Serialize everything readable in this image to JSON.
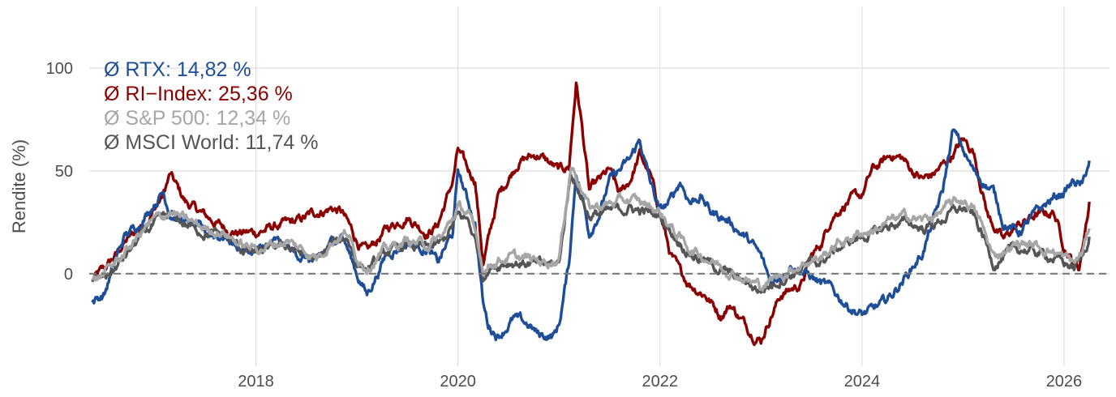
{
  "chart_data": {
    "type": "line",
    "title": "",
    "xlabel": "",
    "ylabel": "Rendite (%)",
    "xlim": [
      2016.35,
      2026.45
    ],
    "ylim": [
      -45,
      130
    ],
    "x_ticks": [
      2018,
      2020,
      2022,
      2024,
      2026
    ],
    "x_tick_labels": [
      "2018",
      "2020",
      "2022",
      "2024",
      "2026"
    ],
    "y_ticks": [
      0,
      50,
      100
    ],
    "y_tick_labels": [
      "0",
      "50",
      "100"
    ],
    "grid": true,
    "reference_line": 0,
    "legend": {
      "placement": "top-left",
      "entries": [
        {
          "label": "Ø RTX: 14,82 %",
          "color": "#1f4e99"
        },
        {
          "label": "Ø RI−Index: 25,36 %",
          "color": "#8b0000"
        },
        {
          "label": "Ø S&P 500: 12,34 %",
          "color": "#a6a6a6"
        },
        {
          "label": "Ø MSCI World: 11,74 %",
          "color": "#555555"
        }
      ]
    },
    "series": [
      {
        "color": "#8b0000",
        "x": [
          2016.38,
          2016.5,
          2016.6,
          2016.7,
          2016.8,
          2016.9,
          2017.0,
          2017.08,
          2017.15,
          2017.3,
          2017.5,
          2017.7,
          2017.85,
          2018.0,
          2018.2,
          2018.4,
          2018.6,
          2018.75,
          2018.85,
          2019.0,
          2019.1,
          2019.3,
          2019.5,
          2019.7,
          2019.8,
          2019.95,
          2020.0,
          2020.1,
          2020.17,
          2020.25,
          2020.4,
          2020.6,
          2020.8,
          2021.0,
          2021.1,
          2021.17,
          2021.22,
          2021.3,
          2021.4,
          2021.5,
          2021.6,
          2021.7,
          2021.8,
          2021.9,
          2022.0,
          2022.1,
          2022.2,
          2022.3,
          2022.45,
          2022.6,
          2022.7,
          2022.8,
          2022.9,
          2023.0,
          2023.1,
          2023.2,
          2023.4,
          2023.5,
          2023.6,
          2023.7,
          2023.85,
          2024.0,
          2024.1,
          2024.2,
          2024.3,
          2024.4,
          2024.5,
          2024.6,
          2024.7,
          2024.85,
          2025.0,
          2025.1,
          2025.25,
          2025.4,
          2025.5,
          2025.7,
          2025.9,
          2026.0,
          2026.1,
          2026.15,
          2026.25
        ],
        "y": [
          -3,
          2,
          8,
          15,
          20,
          25,
          32,
          38,
          48,
          35,
          28,
          22,
          20,
          20,
          23,
          25,
          30,
          32,
          30,
          16,
          10,
          22,
          28,
          20,
          24,
          45,
          60,
          50,
          46,
          5,
          38,
          55,
          58,
          50,
          52,
          93,
          75,
          40,
          45,
          50,
          38,
          45,
          58,
          48,
          30,
          10,
          0,
          -5,
          -10,
          -20,
          -15,
          -22,
          -28,
          -32,
          -20,
          -10,
          -5,
          8,
          15,
          28,
          35,
          38,
          50,
          54,
          58,
          56,
          50,
          46,
          48,
          55,
          65,
          60,
          28,
          16,
          22,
          28,
          30,
          14,
          5,
          3,
          35
        ]
      },
      {
        "color": "#1f4e99",
        "x": [
          2016.38,
          2016.5,
          2016.6,
          2016.7,
          2016.8,
          2016.9,
          2017.0,
          2017.08,
          2017.15,
          2017.3,
          2017.5,
          2017.7,
          2017.85,
          2018.0,
          2018.2,
          2018.4,
          2018.6,
          2018.75,
          2018.85,
          2019.0,
          2019.1,
          2019.3,
          2019.5,
          2019.7,
          2019.8,
          2019.95,
          2020.0,
          2020.1,
          2020.17,
          2020.25,
          2020.3,
          2020.4,
          2020.55,
          2020.7,
          2020.8,
          2020.95,
          2021.0,
          2021.1,
          2021.17,
          2021.22,
          2021.3,
          2021.4,
          2021.5,
          2021.6,
          2021.7,
          2021.8,
          2021.9,
          2022.0,
          2022.1,
          2022.2,
          2022.3,
          2022.4,
          2022.5,
          2022.6,
          2022.7,
          2022.8,
          2022.9,
          2023.0,
          2023.1,
          2023.2,
          2023.3,
          2023.45,
          2023.6,
          2023.7,
          2023.85,
          2024.0,
          2024.1,
          2024.2,
          2024.3,
          2024.45,
          2024.6,
          2024.7,
          2024.8,
          2024.9,
          2025.0,
          2025.1,
          2025.2,
          2025.3,
          2025.4,
          2025.55,
          2025.7,
          2025.85,
          2026.0,
          2026.1,
          2026.18,
          2026.25
        ],
        "y": [
          -14,
          -10,
          5,
          18,
          22,
          28,
          35,
          40,
          30,
          25,
          20,
          18,
          12,
          10,
          15,
          10,
          5,
          15,
          20,
          0,
          -10,
          10,
          15,
          12,
          5,
          20,
          50,
          35,
          25,
          -15,
          -25,
          -30,
          -22,
          -25,
          -30,
          -30,
          -25,
          5,
          50,
          40,
          20,
          30,
          45,
          50,
          55,
          65,
          45,
          30,
          35,
          45,
          35,
          38,
          30,
          28,
          25,
          20,
          15,
          8,
          -5,
          0,
          5,
          0,
          -5,
          -8,
          -15,
          -20,
          -18,
          -15,
          -10,
          0,
          10,
          25,
          40,
          70,
          60,
          50,
          45,
          40,
          25,
          20,
          28,
          35,
          40,
          45,
          42,
          55
        ]
      },
      {
        "color": "#555555",
        "x": [
          2016.38,
          2016.5,
          2016.6,
          2016.7,
          2016.8,
          2016.9,
          2017.0,
          2017.15,
          2017.3,
          2017.5,
          2017.7,
          2017.85,
          2018.0,
          2018.15,
          2018.3,
          2018.45,
          2018.6,
          2018.75,
          2018.9,
          2019.0,
          2019.1,
          2019.3,
          2019.5,
          2019.7,
          2019.85,
          2020.0,
          2020.1,
          2020.2,
          2020.25,
          2020.35,
          2020.5,
          2020.7,
          2020.85,
          2021.0,
          2021.12,
          2021.2,
          2021.3,
          2021.5,
          2021.7,
          2021.85,
          2022.0,
          2022.15,
          2022.3,
          2022.45,
          2022.6,
          2022.75,
          2022.9,
          2023.0,
          2023.15,
          2023.3,
          2023.45,
          2023.6,
          2023.75,
          2023.9,
          2024.0,
          2024.15,
          2024.3,
          2024.45,
          2024.6,
          2024.75,
          2024.9,
          2025.0,
          2025.1,
          2025.2,
          2025.3,
          2025.45,
          2025.6,
          2025.75,
          2025.9,
          2026.0,
          2026.1,
          2026.18,
          2026.25
        ],
        "y": [
          -5,
          -2,
          2,
          8,
          14,
          20,
          24,
          28,
          24,
          20,
          18,
          12,
          10,
          12,
          14,
          10,
          6,
          14,
          18,
          6,
          2,
          10,
          14,
          12,
          15,
          28,
          26,
          12,
          0,
          4,
          6,
          5,
          4,
          5,
          50,
          40,
          28,
          30,
          32,
          30,
          28,
          18,
          10,
          6,
          2,
          -2,
          -6,
          -8,
          -4,
          0,
          4,
          6,
          12,
          16,
          18,
          20,
          24,
          25,
          22,
          25,
          30,
          32,
          28,
          18,
          5,
          10,
          12,
          10,
          8,
          5,
          3,
          8,
          18
        ]
      },
      {
        "color": "#a6a6a6",
        "x": [
          2016.38,
          2016.5,
          2016.6,
          2016.7,
          2016.8,
          2016.9,
          2017.0,
          2017.15,
          2017.3,
          2017.5,
          2017.7,
          2017.85,
          2018.0,
          2018.15,
          2018.3,
          2018.45,
          2018.6,
          2018.75,
          2018.9,
          2019.0,
          2019.1,
          2019.3,
          2019.5,
          2019.7,
          2019.85,
          2020.0,
          2020.1,
          2020.2,
          2020.25,
          2020.35,
          2020.5,
          2020.7,
          2020.85,
          2021.0,
          2021.12,
          2021.2,
          2021.3,
          2021.5,
          2021.7,
          2021.85,
          2022.0,
          2022.15,
          2022.3,
          2022.45,
          2022.6,
          2022.75,
          2022.9,
          2023.0,
          2023.15,
          2023.3,
          2023.45,
          2023.6,
          2023.75,
          2023.9,
          2024.0,
          2024.15,
          2024.3,
          2024.45,
          2024.6,
          2024.75,
          2024.9,
          2025.0,
          2025.1,
          2025.2,
          2025.3,
          2025.45,
          2025.6,
          2025.75,
          2025.9,
          2026.0,
          2026.1,
          2026.18,
          2026.25
        ],
        "y": [
          -4,
          0,
          5,
          10,
          16,
          22,
          26,
          30,
          26,
          22,
          20,
          14,
          12,
          14,
          16,
          12,
          8,
          16,
          20,
          8,
          4,
          12,
          16,
          14,
          18,
          32,
          30,
          14,
          2,
          6,
          8,
          7,
          6,
          7,
          53,
          45,
          32,
          34,
          36,
          34,
          30,
          20,
          12,
          8,
          4,
          0,
          -4,
          -6,
          -2,
          2,
          6,
          8,
          14,
          18,
          20,
          22,
          26,
          28,
          26,
          29,
          34,
          36,
          32,
          22,
          8,
          13,
          15,
          13,
          11,
          8,
          5,
          10,
          22
        ]
      }
    ]
  }
}
